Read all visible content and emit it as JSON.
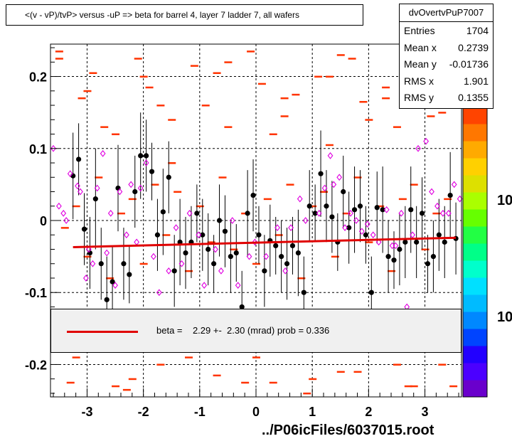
{
  "header": {
    "title": "<(v - vP)/tvP> versus  -uP => beta for barrel 4, layer 7 ladder 7, all wafers"
  },
  "stats": {
    "name": "dvOvertvPuP7007",
    "rows": [
      {
        "label": "Entries",
        "value": "1704"
      },
      {
        "label": "Mean x",
        "value": "0.2739"
      },
      {
        "label": "Mean y",
        "value": "-0.01736"
      },
      {
        "label": "RMS x",
        "value": "1.901"
      },
      {
        "label": "RMS y",
        "value": "0.1355"
      }
    ]
  },
  "fit": {
    "label": "beta =    2.29 +-  2.30 (mrad) prob = 0.336"
  },
  "footer": {
    "file": "../P06icFiles/6037015.root"
  },
  "colors": {
    "fit_line": "#e00000",
    "profile_points": "#000000",
    "hist_cells": "#ff3300",
    "magenta_markers": "#e000e0"
  },
  "chart_data": {
    "type": "scatter",
    "title": "<(v - vP)/tvP> versus  -uP => beta for barrel 4, layer 7 ladder 7, all wafers",
    "xlim": [
      -3.65,
      3.65
    ],
    "ylim": [
      -0.245,
      0.245
    ],
    "x_ticks": [
      "-3",
      "-2",
      "-1",
      "0",
      "1",
      "2",
      "3"
    ],
    "y_ticks": [
      "0.2",
      "0.1",
      "0",
      "-0.1",
      "-0.2"
    ],
    "z_axis_labels": [
      "10",
      "10"
    ],
    "grid": true,
    "fit": {
      "name": "beta",
      "x_range": [
        -3.25,
        3.55
      ],
      "y_at_start": -0.037,
      "y_at_end": -0.024
    },
    "profile_points": {
      "x": [
        -3.25,
        -3.15,
        -3.05,
        -2.95,
        -2.85,
        -2.75,
        -2.65,
        -2.55,
        -2.45,
        -2.35,
        -2.25,
        -2.15,
        -2.05,
        -1.95,
        -1.85,
        -1.75,
        -1.65,
        -1.55,
        -1.45,
        -1.35,
        -1.25,
        -1.15,
        -1.05,
        -0.95,
        -0.85,
        -0.75,
        -0.65,
        -0.55,
        -0.45,
        -0.35,
        -0.25,
        -0.15,
        -0.05,
        0.05,
        0.15,
        0.25,
        0.35,
        0.45,
        0.55,
        0.65,
        0.75,
        0.85,
        0.95,
        1.05,
        1.15,
        1.25,
        1.35,
        1.45,
        1.55,
        1.65,
        1.75,
        1.85,
        1.95,
        2.05,
        2.15,
        2.25,
        2.35,
        2.45,
        2.55,
        2.65,
        2.75,
        2.85,
        2.95,
        3.05,
        3.15,
        3.25,
        3.35,
        3.45,
        3.55
      ],
      "y": [
        0.062,
        0.085,
        -0.012,
        -0.045,
        0.03,
        -0.06,
        -0.11,
        -0.085,
        0.045,
        -0.06,
        -0.075,
        0.04,
        0.09,
        0.09,
        0.068,
        -0.02,
        0.012,
        0.06,
        -0.07,
        -0.03,
        -0.045,
        -0.03,
        0.01,
        -0.02,
        -0.04,
        -0.06,
        0.0,
        -0.015,
        -0.05,
        -0.045,
        -0.12,
        0.01,
        0.035,
        -0.02,
        -0.07,
        -0.028,
        -0.035,
        -0.05,
        -0.06,
        -0.035,
        -0.045,
        -0.1,
        0.02,
        0.01,
        0.065,
        0.02,
        0.005,
        -0.03,
        0.04,
        -0.01,
        0.015,
        0.02,
        -0.02,
        -0.1,
        0.018,
        0.015,
        -0.05,
        -0.055,
        -0.04,
        -0.03,
        0.015,
        -0.03,
        0.01,
        -0.06,
        -0.05,
        -0.02,
        -0.03,
        0.035,
        -0.025
      ],
      "err": [
        0.06,
        0.05,
        0.05,
        0.05,
        0.07,
        0.05,
        0.06,
        0.05,
        0.06,
        0.05,
        0.04,
        0.05,
        0.06,
        0.05,
        0.04,
        0.05,
        0.06,
        0.05,
        0.05,
        0.06,
        0.05,
        0.05,
        0.04,
        0.05,
        0.05,
        0.04,
        0.05,
        0.05,
        0.05,
        0.04,
        0.05,
        0.06,
        0.05,
        0.04,
        0.05,
        0.05,
        0.04,
        0.05,
        0.05,
        0.04,
        0.06,
        0.05,
        0.05,
        0.04,
        0.06,
        0.05,
        0.05,
        0.04,
        0.05,
        0.05,
        0.06,
        0.05,
        0.04,
        0.05,
        0.05,
        0.06,
        0.05,
        0.04,
        0.05,
        0.05,
        0.06,
        0.05,
        0.05,
        0.04,
        0.05,
        0.05,
        0.05,
        0.06,
        0.05
      ]
    },
    "magenta_points": {
      "x": [
        -3.6,
        -3.5,
        -3.42,
        -3.37,
        -3.3,
        -3.17,
        -3.12,
        -3.02,
        -2.97,
        -2.9,
        -2.82,
        -2.72,
        -2.65,
        -2.58,
        -2.5,
        -2.42,
        -2.3,
        -2.22,
        -2.12,
        -2.05,
        -1.95,
        -1.82,
        -1.72,
        -1.55,
        -1.42,
        -1.32,
        -1.18,
        -1.02,
        -0.92,
        -0.72,
        -0.62,
        -0.42,
        -0.32,
        -0.12,
        -0.02,
        0.18,
        0.38,
        0.52,
        0.62,
        0.78,
        0.88,
        1.12,
        1.22,
        1.32,
        1.38,
        1.48,
        1.58,
        1.68,
        1.78,
        1.88,
        1.98,
        2.08,
        2.18,
        2.32,
        2.42,
        2.48,
        2.58,
        2.68,
        2.78,
        2.88,
        3.02,
        3.12,
        3.22,
        3.32,
        3.42,
        3.52,
        3.62
      ],
      "y": [
        0.1,
        0.02,
        0.01,
        0.0,
        0.065,
        0.048,
        0.04,
        -0.08,
        -0.04,
        -0.06,
        0.045,
        0.093,
        -0.045,
        0.01,
        -0.09,
        0.04,
        -0.02,
        0.05,
        -0.03,
        0.045,
        0.08,
        -0.05,
        -0.1,
        -0.07,
        -0.01,
        -0.06,
        0.01,
        -0.02,
        -0.09,
        -0.04,
        -0.07,
        0.0,
        -0.09,
        -0.05,
        -0.03,
        -0.05,
        -0.01,
        -0.07,
        -0.01,
        0.03,
        0.0,
        0.01,
        0.045,
        0.09,
        0.05,
        0.06,
        -0.01,
        0.01,
        0.0,
        -0.015,
        -0.005,
        -0.02,
        -0.03,
        0.015,
        -0.035,
        -0.035,
        0.01,
        -0.12,
        -0.02,
        0.1,
        0.11,
        0.04,
        0.02,
        0.01,
        0.01,
        0.05,
        0.03
      ]
    },
    "hist_cells": {
      "x": [
        -3.5,
        -3.3,
        -3.1,
        -2.9,
        -2.7,
        -2.5,
        -2.3,
        -2.1,
        -1.9,
        -1.7,
        -1.5,
        -1.3,
        -1.1,
        -0.9,
        -0.7,
        -0.5,
        -0.3,
        -0.1,
        0.1,
        0.3,
        0.5,
        0.7,
        0.9,
        1.1,
        1.3,
        1.5,
        1.7,
        1.9,
        2.1,
        2.3,
        2.5,
        2.7,
        2.9,
        3.1,
        3.3,
        3.5,
        -3.4,
        -3.2,
        -3.0,
        -2.8,
        -2.6,
        -2.4,
        -2.2,
        -2.0,
        -1.8,
        -1.6,
        -1.4,
        -1.2,
        -1.0,
        -0.8,
        -0.6,
        -0.4,
        -0.2,
        0.0,
        0.2,
        0.4,
        0.6,
        0.8,
        1.0,
        1.2,
        1.4,
        1.6,
        1.8,
        2.0,
        2.2,
        2.4,
        2.6,
        2.8,
        3.0,
        3.2,
        3.4,
        -3.5,
        -3.0,
        -2.5,
        -2.0,
        -1.5,
        -1.0,
        -0.5,
        0.0,
        0.5,
        1.0,
        1.5,
        2.0,
        2.5,
        3.0,
        3.5,
        -3.2,
        -2.7,
        -2.2,
        -1.7,
        -1.2,
        -0.7,
        -0.2,
        0.3,
        0.8,
        1.3,
        1.8,
        2.3,
        2.8,
        3.3
      ],
      "y": [
        0.235,
        -0.225,
        0.17,
        0.205,
        -0.16,
        0.12,
        -0.235,
        0.225,
        0.185,
        -0.2,
        0.08,
        -0.145,
        0.215,
        0.16,
        -0.215,
        0.13,
        -0.18,
        0.235,
        0.19,
        -0.225,
        0.145,
        0.175,
        -0.24,
        0.2,
        0.105,
        -0.21,
        0.225,
        0.165,
        -0.155,
        0.185,
        0.13,
        -0.23,
        0.21,
        0.145,
        -0.2,
        0.18,
        -0.01,
        0.02,
        -0.05,
        0.06,
        -0.08,
        0.01,
        0.03,
        -0.06,
        0.05,
        -0.02,
        0.04,
        -0.07,
        0.02,
        -0.03,
        0.06,
        -0.04,
        0.01,
        -0.06,
        0.03,
        -0.02,
        0.05,
        -0.08,
        0.02,
        0.04,
        -0.05,
        0.01,
        0.06,
        -0.03,
        0.02,
        -0.07,
        0.03,
        0.05,
        -0.04,
        0.01,
        0.03,
        0.225,
        0.18,
        -0.23,
        0.2,
        0.14,
        -0.18,
        0.22,
        -0.19,
        0.17,
        -0.22,
        0.23,
        0.14,
        -0.2,
        0.19,
        -0.23,
        -0.19,
        0.13,
        -0.22,
        0.16,
        -0.19,
        0.205,
        -0.225,
        0.12,
        -0.16,
        0.2,
        -0.21,
        0.17,
        -0.23,
        0.15
      ]
    },
    "palette": [
      "#6a00cc",
      "#4b00ff",
      "#2200ff",
      "#0044ff",
      "#0088ff",
      "#00bbff",
      "#00e0ff",
      "#00ffcc",
      "#00ff88",
      "#22ff44",
      "#66ff00",
      "#aaff00",
      "#dde000",
      "#ffd000",
      "#ffaa00",
      "#ff7700",
      "#ff4400"
    ]
  }
}
